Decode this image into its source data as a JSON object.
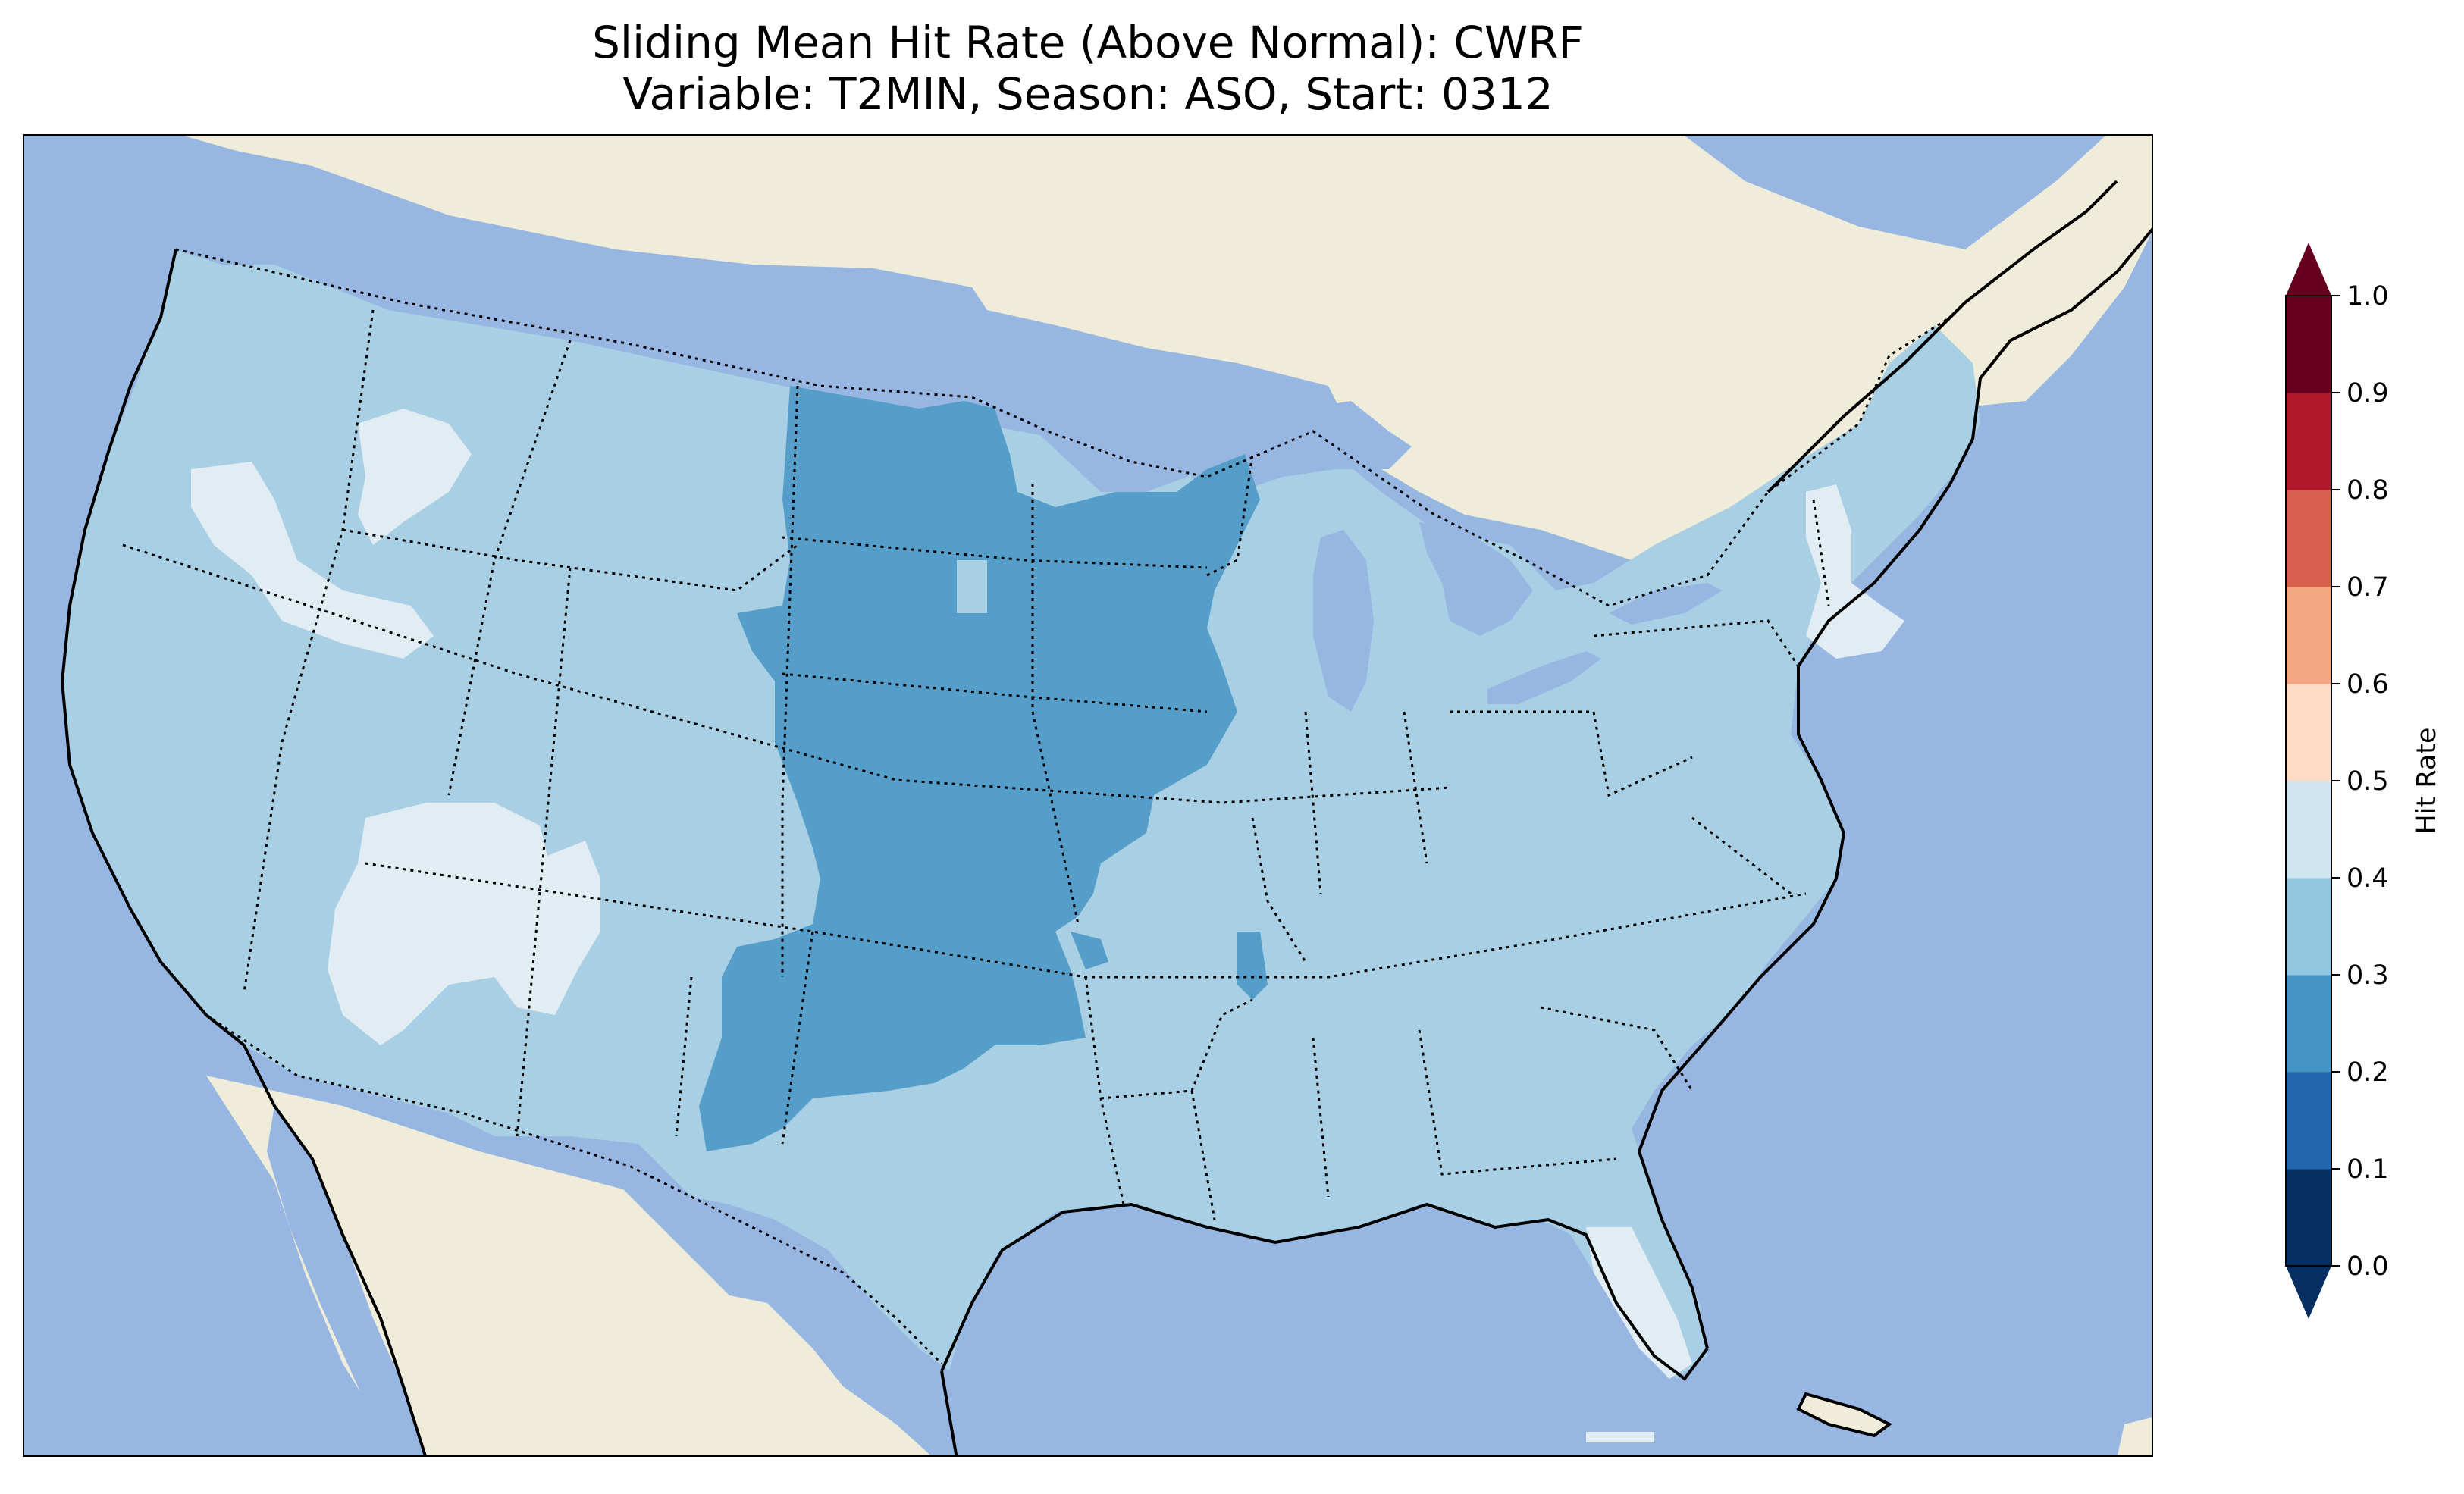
{
  "title": {
    "line1": "Sliding Mean Hit Rate (Above Normal): CWRF",
    "line2": "Variable: T2MIN, Season: ASO, Start: 0312"
  },
  "colors": {
    "ocean": "#97b6e1",
    "land": "#efedda",
    "lakes": "#97b6e1",
    "class_0_2_0_3": "#549ec9",
    "class_0_3_0_4": "#a9cfe4",
    "class_0_4_0_5": "#e1ecf3"
  },
  "colorbar": {
    "label": "Hit Rate",
    "ticks": [
      "0.0",
      "0.1",
      "0.2",
      "0.3",
      "0.4",
      "0.5",
      "0.6",
      "0.7",
      "0.8",
      "0.9",
      "1.0"
    ],
    "bin_colors": [
      "#053061",
      "#2166ac",
      "#4393c3",
      "#92c5de",
      "#d1e5f0",
      "#fddbc7",
      "#f4a582",
      "#d6604d",
      "#b2182b",
      "#67001f"
    ],
    "under_color": "#053061",
    "over_color": "#67001f",
    "extend": "both"
  },
  "map": {
    "projection": "Lambert conformal (CONUS)",
    "features": [
      "coastlines",
      "state borders (dotted)",
      "country borders",
      "lakes"
    ],
    "field_classes": [
      "0.2–0.3",
      "0.3–0.4",
      "0.4–0.5"
    ],
    "dominant_class": "0.3–0.4",
    "regions": [
      {
        "area": "Northern Plains and western Corn Belt",
        "class": "0.2–0.3"
      },
      {
        "area": "Central/Southern Plains (Kansas, Oklahoma, eastern New Mexico)",
        "class": "0.2–0.3"
      },
      {
        "area": "Great Basin (Nevada, Utah)",
        "class": "0.4–0.5"
      },
      {
        "area": "Northern Rockies (Idaho, Oregon)",
        "class": "0.4–0.5"
      },
      {
        "area": "Southern Florida",
        "class": "0.4–0.5"
      },
      {
        "area": "New Hampshire and Massachusetts",
        "class": "0.4–0.5"
      },
      {
        "area": "Remaining CONUS",
        "class": "0.3–0.4"
      }
    ]
  }
}
